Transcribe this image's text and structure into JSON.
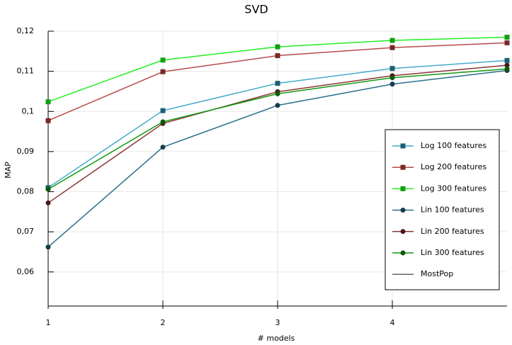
{
  "chart_data": {
    "type": "line",
    "title": "SVD",
    "x_label": "# models",
    "y_label": "MAP",
    "x": [
      1,
      2,
      3,
      4,
      5
    ],
    "xlim": [
      1,
      5
    ],
    "xticks": [
      1,
      2,
      3,
      4
    ],
    "ylim": [
      0.0515,
      0.12
    ],
    "yticks": [
      {
        "value": 0.06,
        "label": "0,06"
      },
      {
        "value": 0.07,
        "label": "0,07"
      },
      {
        "value": 0.08,
        "label": "0,08"
      },
      {
        "value": 0.09,
        "label": "0,09"
      },
      {
        "value": 0.1,
        "label": "0,1"
      },
      {
        "value": 0.11,
        "label": "0,11"
      },
      {
        "value": 0.12,
        "label": "0,12"
      }
    ],
    "grid": true,
    "legend": "right",
    "series": [
      {
        "name": "Log 100 features",
        "color": "#45aacb",
        "marker_color": "#1d5e73",
        "marker": "square",
        "values": [
          0.081,
          0.1002,
          0.107,
          0.1107,
          0.1127
        ]
      },
      {
        "name": "Log 200 features",
        "color": "#b84a4a",
        "marker_color": "#7a2828",
        "marker": "square",
        "values": [
          0.0977,
          0.1099,
          0.1139,
          0.1159,
          0.1171
        ]
      },
      {
        "name": "Log 300 features",
        "color": "#22ee22",
        "marker_color": "#11a011",
        "marker": "square",
        "values": [
          0.1024,
          0.1128,
          0.1161,
          0.1177,
          0.1185
        ]
      },
      {
        "name": "Lin 100 features",
        "color": "#2a7088",
        "marker_color": "#163d4c",
        "marker": "circle",
        "values": [
          0.0662,
          0.0911,
          0.1015,
          0.1068,
          0.1102
        ]
      },
      {
        "name": "Lin 200 features",
        "color": "#8a3636",
        "marker_color": "#4a1818",
        "marker": "circle",
        "values": [
          0.0772,
          0.097,
          0.1049,
          0.1089,
          0.1115
        ]
      },
      {
        "name": "Lin 300 features",
        "color": "#129a12",
        "marker_color": "#0a5a0a",
        "marker": "circle",
        "values": [
          0.0806,
          0.0974,
          0.1044,
          0.1084,
          0.1106
        ]
      },
      {
        "name": "MostPop",
        "color": "#666666",
        "marker_color": "#666666",
        "marker": "none",
        "values": [
          null,
          null,
          null,
          null,
          null
        ]
      }
    ]
  }
}
